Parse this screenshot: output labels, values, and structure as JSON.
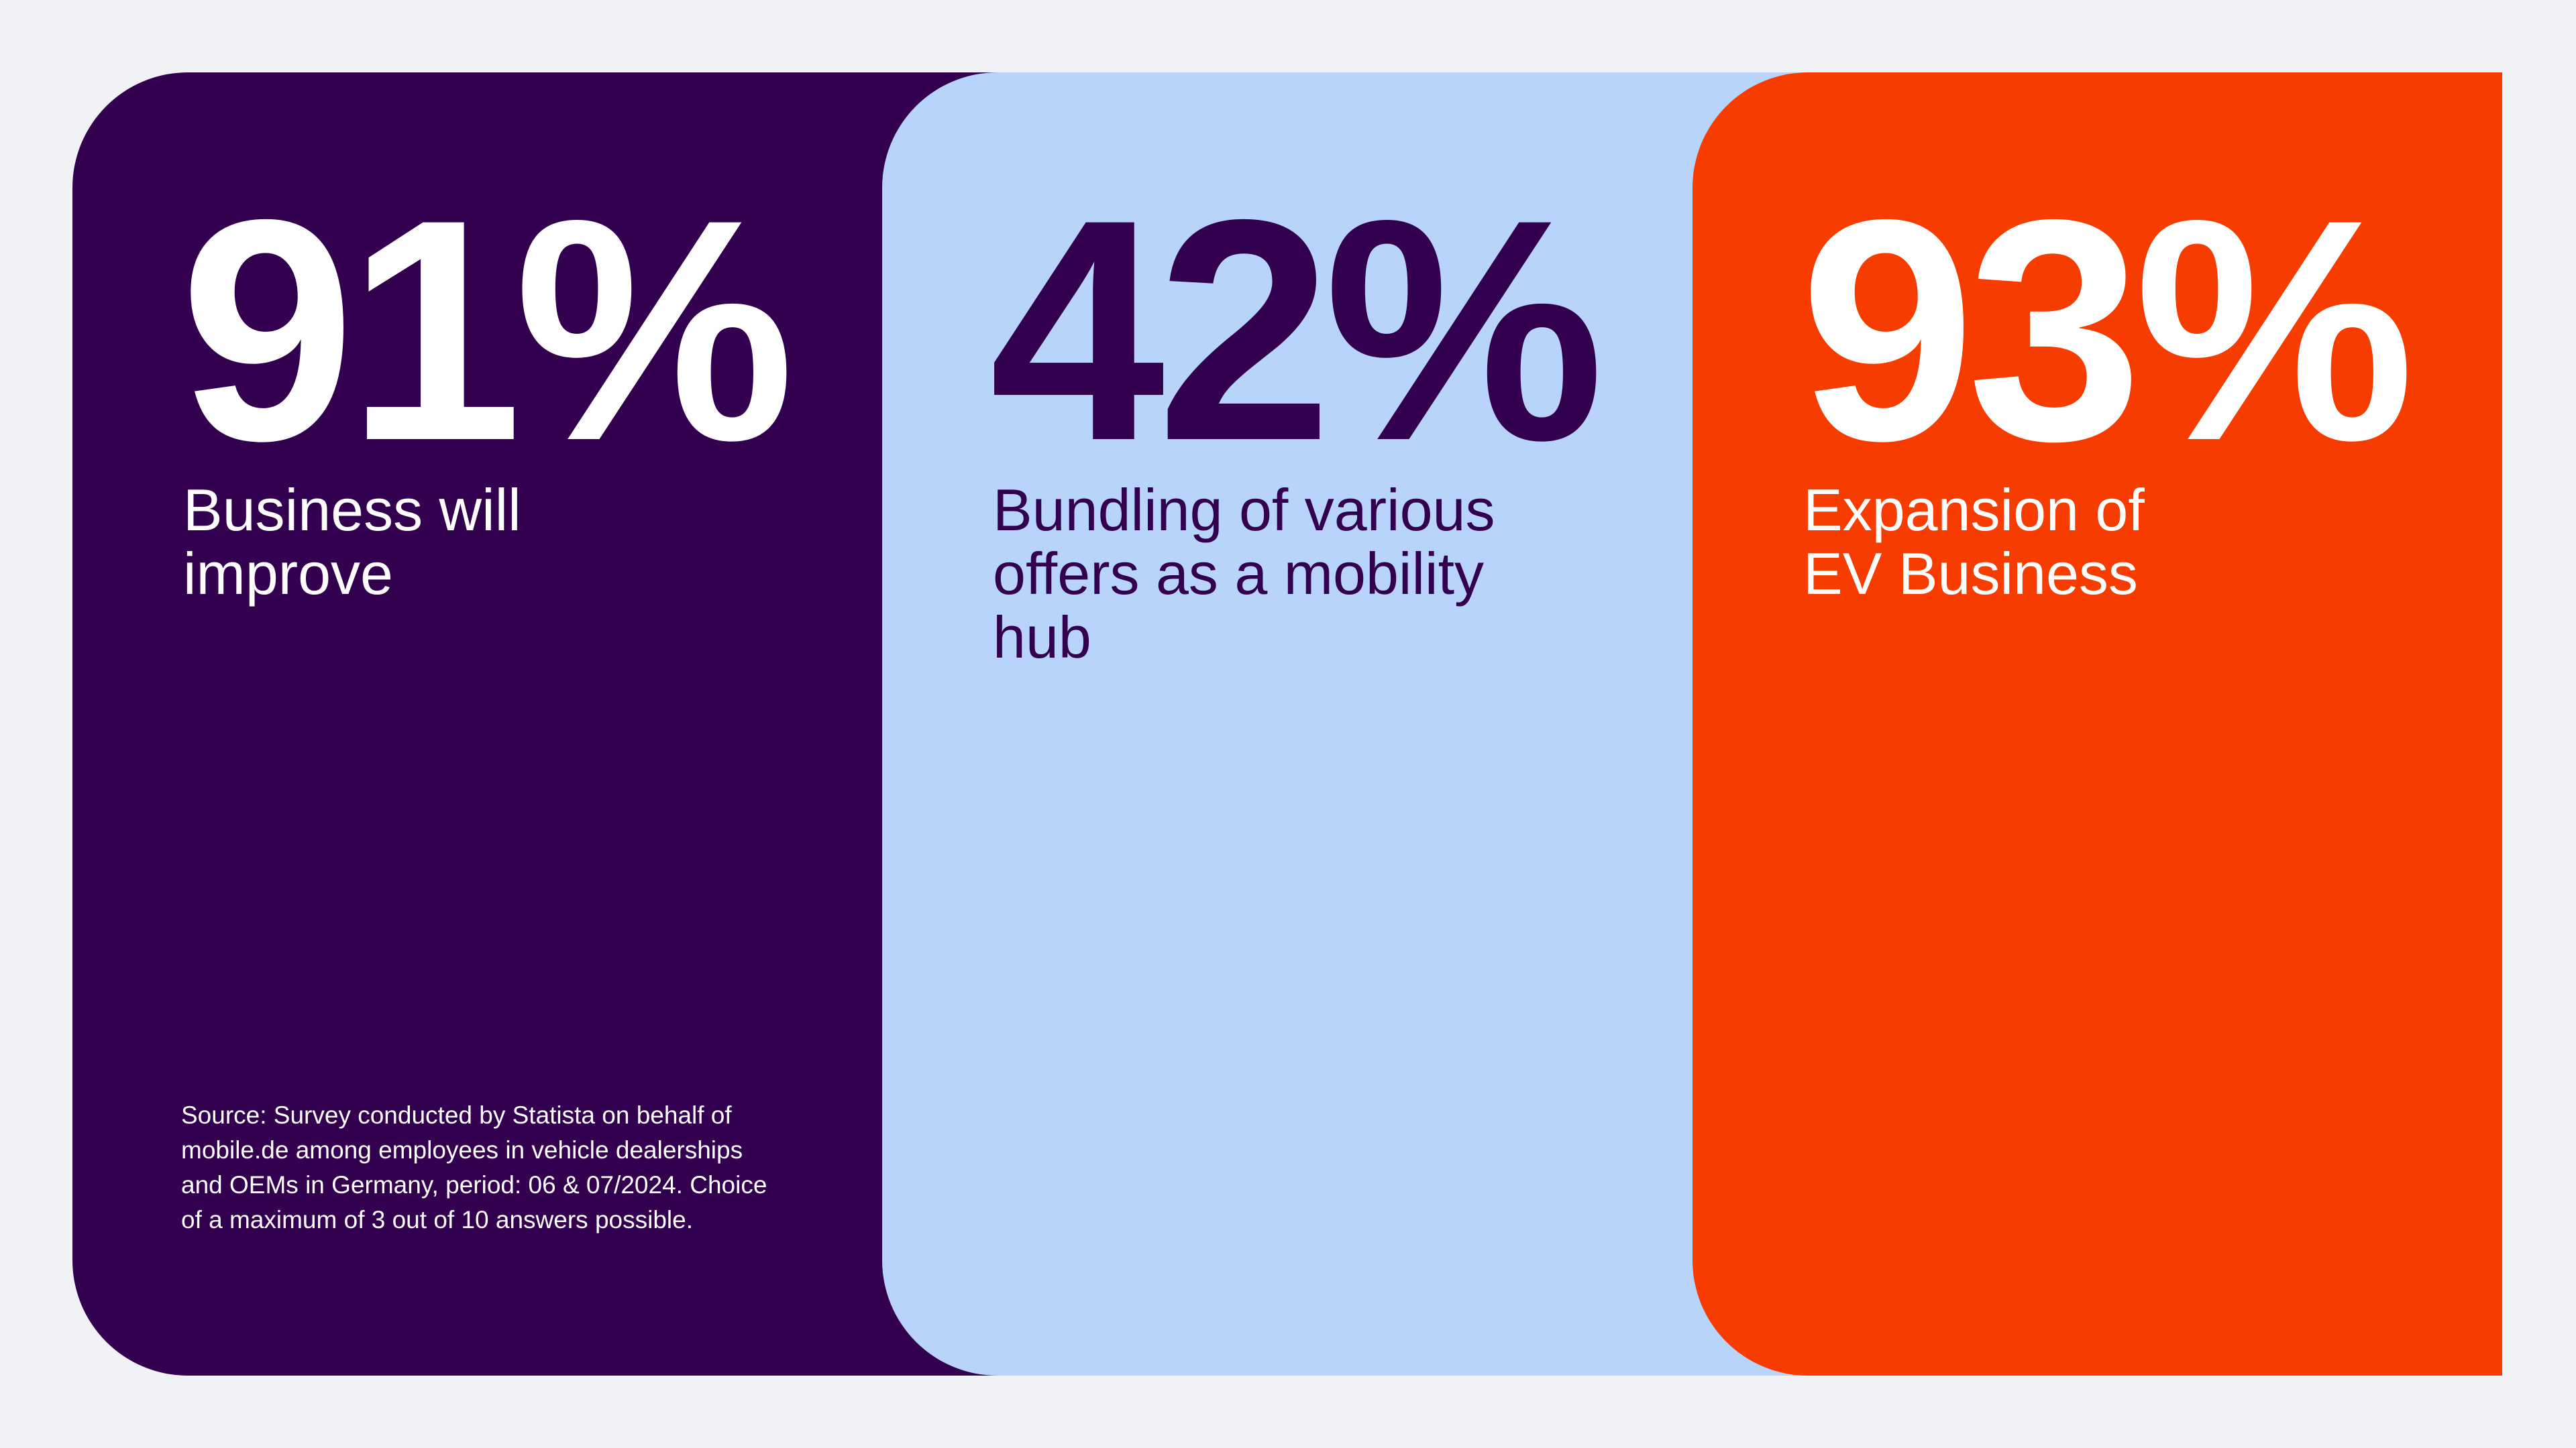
{
  "cards": [
    {
      "figure": "91%",
      "label": "Business will improve"
    },
    {
      "figure": "42%",
      "label": "Bundling of various offers as a mobility hub"
    },
    {
      "figure": "93%",
      "label": "Expansion of EV Business"
    }
  ],
  "source": "Source: Survey conducted by Statista on behalf of mobile.de among employees in vehicle dealerships and OEMs in Germany, period: 06 & 07/2024. Choice of a maximum of 3 out of 10 answers possible."
}
